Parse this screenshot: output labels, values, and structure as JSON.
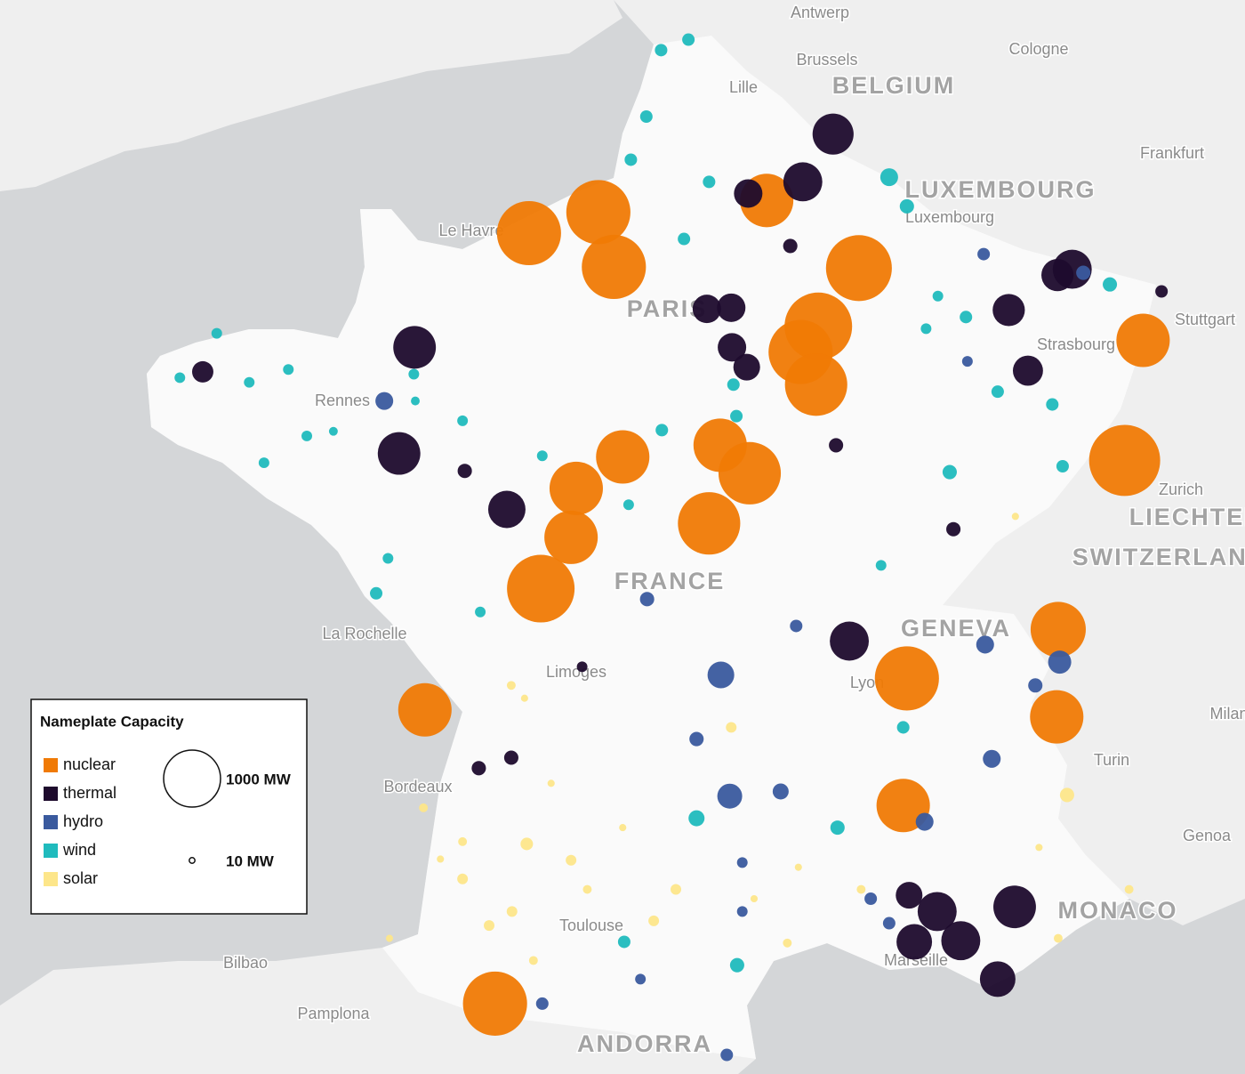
{
  "chart_data": {
    "type": "bubble_map",
    "legend_title": "Nameplate Capacity",
    "size_legend": [
      {
        "value": 1000,
        "label": "1000 MW"
      },
      {
        "value": 10,
        "label": "10 MW"
      }
    ],
    "places": [
      {
        "name": "Antwerp",
        "kind": "city"
      },
      {
        "name": "Brussels",
        "kind": "city"
      },
      {
        "name": "Cologne",
        "kind": "city"
      },
      {
        "name": "BELGIUM",
        "kind": "country"
      },
      {
        "name": "Lille",
        "kind": "city"
      },
      {
        "name": "Frankfurt",
        "kind": "city"
      },
      {
        "name": "LUXEMBOURG",
        "kind": "country"
      },
      {
        "name": "Luxembourg",
        "kind": "city"
      },
      {
        "name": "Le Havre",
        "kind": "city"
      },
      {
        "name": "PARIS",
        "kind": "country"
      },
      {
        "name": "Stuttgart",
        "kind": "city"
      },
      {
        "name": "Strasbourg",
        "kind": "city"
      },
      {
        "name": "Rennes",
        "kind": "city"
      },
      {
        "name": "Zurich",
        "kind": "city"
      },
      {
        "name": "LIECHTENSTEIN",
        "kind": "country"
      },
      {
        "name": "SWITZERLAND",
        "kind": "country"
      },
      {
        "name": "FRANCE",
        "kind": "country"
      },
      {
        "name": "GENEVA",
        "kind": "country"
      },
      {
        "name": "La Rochelle",
        "kind": "city"
      },
      {
        "name": "Limoges",
        "kind": "city"
      },
      {
        "name": "Lyon",
        "kind": "city"
      },
      {
        "name": "Milan",
        "kind": "city"
      },
      {
        "name": "Turin",
        "kind": "city"
      },
      {
        "name": "Bordeaux",
        "kind": "city"
      },
      {
        "name": "Genoa",
        "kind": "city"
      },
      {
        "name": "MONACO",
        "kind": "country"
      },
      {
        "name": "Toulouse",
        "kind": "city"
      },
      {
        "name": "Marseille",
        "kind": "city"
      },
      {
        "name": "Bilbao",
        "kind": "city"
      },
      {
        "name": "Pamplona",
        "kind": "city"
      },
      {
        "name": "ANDORRA",
        "kind": "country"
      }
    ],
    "series": [
      {
        "name": "nuclear",
        "color": "#f07a05",
        "points": [
          {
            "lon": 0.48,
            "lat": 49.53,
            "mw": 1270
          },
          {
            "lon": 1.42,
            "lat": 49.71,
            "mw": 1270
          },
          {
            "lon": 1.63,
            "lat": 49.24,
            "mw": 1270
          },
          {
            "lon": 3.7,
            "lat": 49.81,
            "mw": 880
          },
          {
            "lon": 4.95,
            "lat": 49.23,
            "mw": 1340
          },
          {
            "lon": 4.4,
            "lat": 48.73,
            "mw": 1410
          },
          {
            "lon": 4.16,
            "lat": 48.51,
            "mw": 1270
          },
          {
            "lon": 4.37,
            "lat": 48.23,
            "mw": 1200
          },
          {
            "lon": 8.8,
            "lat": 48.61,
            "mw": 880
          },
          {
            "lon": 8.55,
            "lat": 47.58,
            "mw": 1560
          },
          {
            "lon": 1.75,
            "lat": 47.61,
            "mw": 880
          },
          {
            "lon": 3.07,
            "lat": 47.71,
            "mw": 880
          },
          {
            "lon": 3.47,
            "lat": 47.47,
            "mw": 1200
          },
          {
            "lon": 1.12,
            "lat": 47.34,
            "mw": 880
          },
          {
            "lon": 2.92,
            "lat": 47.04,
            "mw": 1200
          },
          {
            "lon": 1.05,
            "lat": 46.92,
            "mw": 880
          },
          {
            "lon": 0.64,
            "lat": 46.48,
            "mw": 1410
          },
          {
            "lon": -0.93,
            "lat": 45.44,
            "mw": 880
          },
          {
            "lon": 0.02,
            "lat": 42.92,
            "mw": 1270
          },
          {
            "lon": 5.6,
            "lat": 45.71,
            "mw": 1270
          },
          {
            "lon": 7.65,
            "lat": 46.13,
            "mw": 940
          },
          {
            "lon": 7.63,
            "lat": 45.38,
            "mw": 880
          },
          {
            "lon": 5.55,
            "lat": 44.62,
            "mw": 880
          }
        ]
      },
      {
        "name": "thermal",
        "color": "#1e0b2d",
        "points": [
          {
            "lon": 4.6,
            "lat": 50.38,
            "mw": 520
          },
          {
            "lon": 4.19,
            "lat": 49.97,
            "mw": 470
          },
          {
            "lon": 3.45,
            "lat": 49.87,
            "mw": 250
          },
          {
            "lon": 7.84,
            "lat": 49.22,
            "mw": 470
          },
          {
            "lon": 7.64,
            "lat": 49.17,
            "mw": 320
          },
          {
            "lon": -1.07,
            "lat": 48.55,
            "mw": 560
          },
          {
            "lon": -3.94,
            "lat": 48.34,
            "mw": 140
          },
          {
            "lon": -1.28,
            "lat": 47.64,
            "mw": 560
          },
          {
            "lon": 0.18,
            "lat": 47.16,
            "mw": 430
          },
          {
            "lon": 6.98,
            "lat": 48.87,
            "mw": 320
          },
          {
            "lon": 7.24,
            "lat": 48.35,
            "mw": 280
          },
          {
            "lon": 2.89,
            "lat": 48.88,
            "mw": 250
          },
          {
            "lon": 3.22,
            "lat": 48.89,
            "mw": 250
          },
          {
            "lon": 3.23,
            "lat": 48.55,
            "mw": 250
          },
          {
            "lon": 3.43,
            "lat": 48.38,
            "mw": 220
          },
          {
            "lon": 4.82,
            "lat": 46.03,
            "mw": 470
          },
          {
            "lon": 7.06,
            "lat": 43.75,
            "mw": 560
          },
          {
            "lon": 6.01,
            "lat": 43.71,
            "mw": 470
          },
          {
            "lon": 6.33,
            "lat": 43.46,
            "mw": 470
          },
          {
            "lon": 5.7,
            "lat": 43.45,
            "mw": 390
          },
          {
            "lon": 6.83,
            "lat": 43.13,
            "mw": 390
          },
          {
            "lon": 5.63,
            "lat": 43.85,
            "mw": 220
          },
          {
            "lon": -0.2,
            "lat": 44.94,
            "mw": 63
          },
          {
            "lon": 0.24,
            "lat": 45.03,
            "mw": 63
          },
          {
            "lon": 6.23,
            "lat": 46.99,
            "mw": 63
          },
          {
            "lon": 4.64,
            "lat": 47.71,
            "mw": 63
          },
          {
            "lon": 4.02,
            "lat": 49.42,
            "mw": 63
          },
          {
            "lon": -0.39,
            "lat": 47.49,
            "mw": 63
          },
          {
            "lon": 1.2,
            "lat": 45.81,
            "mw": 35
          },
          {
            "lon": 9.05,
            "lat": 49.03,
            "mw": 48
          }
        ]
      },
      {
        "name": "hydro",
        "color": "#3a5a9e",
        "points": [
          {
            "lon": 3.08,
            "lat": 45.74,
            "mw": 220
          },
          {
            "lon": 7.67,
            "lat": 45.85,
            "mw": 165
          },
          {
            "lon": 6.66,
            "lat": 46.0,
            "mw": 98
          },
          {
            "lon": 3.2,
            "lat": 44.7,
            "mw": 191
          },
          {
            "lon": 3.89,
            "lat": 44.74,
            "mw": 79
          },
          {
            "lon": 5.84,
            "lat": 44.48,
            "mw": 98
          },
          {
            "lon": 2.08,
            "lat": 46.39,
            "mw": 63
          },
          {
            "lon": -1.48,
            "lat": 48.09,
            "mw": 98
          },
          {
            "lon": 6.75,
            "lat": 45.02,
            "mw": 98
          },
          {
            "lon": 7.34,
            "lat": 45.65,
            "mw": 63
          },
          {
            "lon": 2.75,
            "lat": 45.19,
            "mw": 63
          },
          {
            "lon": 3.37,
            "lat": 44.13,
            "mw": 35
          },
          {
            "lon": 0.66,
            "lat": 42.92,
            "mw": 48
          },
          {
            "lon": 3.16,
            "lat": 42.48,
            "mw": 48
          },
          {
            "lon": 4.1,
            "lat": 46.16,
            "mw": 48
          },
          {
            "lon": 6.42,
            "lat": 48.43,
            "mw": 35
          },
          {
            "lon": 6.64,
            "lat": 49.35,
            "mw": 48
          },
          {
            "lon": 7.99,
            "lat": 49.19,
            "mw": 63
          },
          {
            "lon": 5.11,
            "lat": 43.82,
            "mw": 48
          },
          {
            "lon": 3.37,
            "lat": 43.71,
            "mw": 35
          },
          {
            "lon": 1.99,
            "lat": 43.13,
            "mw": 35
          },
          {
            "lon": 5.36,
            "lat": 43.61,
            "mw": 48
          }
        ]
      },
      {
        "name": "wind",
        "color": "#20bbbd",
        "points": [
          {
            "lon": 2.27,
            "lat": 51.1,
            "mw": 48
          },
          {
            "lon": 2.64,
            "lat": 51.19,
            "mw": 48
          },
          {
            "lon": 2.07,
            "lat": 50.53,
            "mw": 48
          },
          {
            "lon": 1.86,
            "lat": 50.16,
            "mw": 48
          },
          {
            "lon": 2.92,
            "lat": 49.97,
            "mw": 48
          },
          {
            "lon": 5.36,
            "lat": 50.01,
            "mw": 98
          },
          {
            "lon": 5.6,
            "lat": 49.76,
            "mw": 63
          },
          {
            "lon": 2.58,
            "lat": 49.48,
            "mw": 48
          },
          {
            "lon": 3.25,
            "lat": 48.23,
            "mw": 48
          },
          {
            "lon": 3.29,
            "lat": 47.96,
            "mw": 48
          },
          {
            "lon": 2.28,
            "lat": 47.84,
            "mw": 48
          },
          {
            "lon": 6.18,
            "lat": 47.48,
            "mw": 63
          },
          {
            "lon": 8.35,
            "lat": 49.09,
            "mw": 63
          },
          {
            "lon": 6.4,
            "lat": 48.81,
            "mw": 48
          },
          {
            "lon": 6.83,
            "lat": 48.17,
            "mw": 48
          },
          {
            "lon": 7.57,
            "lat": 48.06,
            "mw": 48
          },
          {
            "lon": 7.71,
            "lat": 47.53,
            "mw": 48
          },
          {
            "lon": -3.75,
            "lat": 48.67,
            "mw": 35
          },
          {
            "lon": -4.25,
            "lat": 48.29,
            "mw": 35
          },
          {
            "lon": -3.31,
            "lat": 48.25,
            "mw": 35
          },
          {
            "lon": -2.53,
            "lat": 47.79,
            "mw": 35
          },
          {
            "lon": -3.11,
            "lat": 47.56,
            "mw": 35
          },
          {
            "lon": -1.43,
            "lat": 46.74,
            "mw": 35
          },
          {
            "lon": -1.59,
            "lat": 46.44,
            "mw": 48
          },
          {
            "lon": -0.18,
            "lat": 46.28,
            "mw": 35
          },
          {
            "lon": 3.3,
            "lat": 43.25,
            "mw": 63
          },
          {
            "lon": 4.66,
            "lat": 44.43,
            "mw": 63
          },
          {
            "lon": 2.75,
            "lat": 44.51,
            "mw": 79
          },
          {
            "lon": 1.77,
            "lat": 43.45,
            "mw": 48
          },
          {
            "lon": 5.55,
            "lat": 45.29,
            "mw": 48
          },
          {
            "lon": -0.42,
            "lat": 47.92,
            "mw": 35
          },
          {
            "lon": 0.66,
            "lat": 47.62,
            "mw": 35
          },
          {
            "lon": 1.83,
            "lat": 47.2,
            "mw": 35
          },
          {
            "lon": 5.25,
            "lat": 46.68,
            "mw": 35
          },
          {
            "lon": 6.02,
            "lat": 48.99,
            "mw": 35
          },
          {
            "lon": 5.86,
            "lat": 48.71,
            "mw": 35
          },
          {
            "lon": -1.08,
            "lat": 48.32,
            "mw": 35
          },
          {
            "lon": -1.06,
            "lat": 48.09,
            "mw": 24
          },
          {
            "lon": -2.17,
            "lat": 47.83,
            "mw": 24
          },
          {
            "lon": -2.78,
            "lat": 48.36,
            "mw": 35
          }
        ]
      },
      {
        "name": "solar",
        "color": "#fde68a",
        "points": [
          {
            "lon": 7.77,
            "lat": 44.71,
            "mw": 63
          },
          {
            "lon": 0.45,
            "lat": 44.29,
            "mw": 48
          },
          {
            "lon": -0.06,
            "lat": 43.59,
            "mw": 35
          },
          {
            "lon": 0.25,
            "lat": 43.71,
            "mw": 35
          },
          {
            "lon": -0.42,
            "lat": 43.99,
            "mw": 35
          },
          {
            "lon": 1.05,
            "lat": 44.15,
            "mw": 35
          },
          {
            "lon": 2.17,
            "lat": 43.63,
            "mw": 35
          },
          {
            "lon": 2.47,
            "lat": 43.9,
            "mw": 35
          },
          {
            "lon": 8.61,
            "lat": 43.9,
            "mw": 24
          },
          {
            "lon": 3.22,
            "lat": 45.29,
            "mw": 35
          },
          {
            "lon": 4.98,
            "lat": 43.9,
            "mw": 24
          },
          {
            "lon": 7.65,
            "lat": 43.48,
            "mw": 24
          },
          {
            "lon": -0.42,
            "lat": 44.31,
            "mw": 24
          },
          {
            "lon": -0.95,
            "lat": 44.6,
            "mw": 24
          },
          {
            "lon": 3.98,
            "lat": 43.44,
            "mw": 24
          },
          {
            "lon": 1.27,
            "lat": 43.9,
            "mw": 24
          },
          {
            "lon": 0.54,
            "lat": 43.29,
            "mw": 24
          },
          {
            "lon": 0.24,
            "lat": 45.65,
            "mw": 24
          },
          {
            "lon": 0.42,
            "lat": 45.54,
            "mw": 16
          },
          {
            "lon": -0.72,
            "lat": 44.16,
            "mw": 16
          },
          {
            "lon": 7.07,
            "lat": 47.1,
            "mw": 16
          },
          {
            "lon": 7.39,
            "lat": 44.26,
            "mw": 16
          },
          {
            "lon": 4.13,
            "lat": 44.09,
            "mw": 16
          },
          {
            "lon": -1.41,
            "lat": 43.48,
            "mw": 16
          },
          {
            "lon": 3.53,
            "lat": 43.82,
            "mw": 16
          },
          {
            "lon": 1.75,
            "lat": 44.43,
            "mw": 16
          },
          {
            "lon": 0.78,
            "lat": 44.81,
            "mw": 16
          }
        ]
      }
    ]
  }
}
